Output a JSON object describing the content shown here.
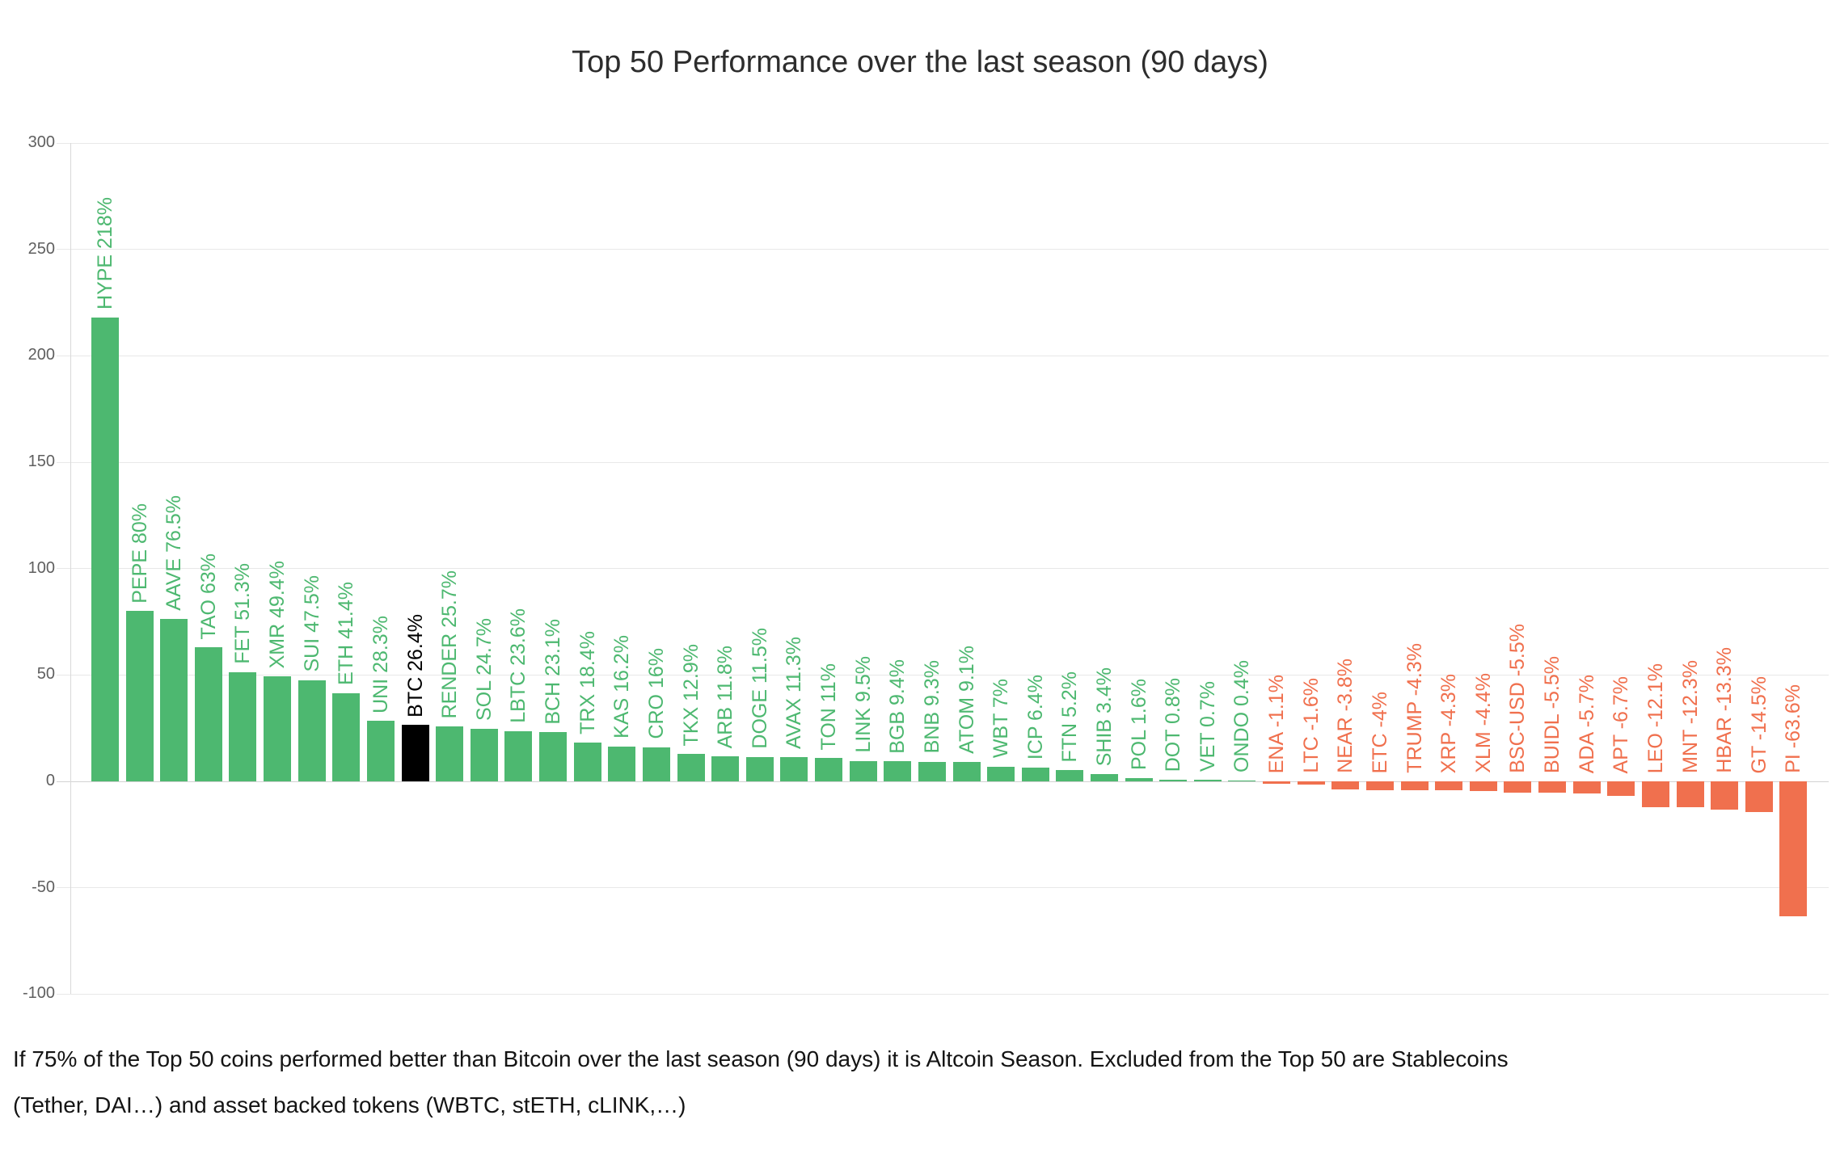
{
  "title": "Top 50 Performance over the last season (90 days)",
  "footnote": {
    "line1": "If 75% of the Top 50 coins performed better than Bitcoin over the last season (90 days) it is Altcoin Season. Excluded from the Top 50 are Stablecoins",
    "line2": "(Tether, DAI…) and asset backed tokens (WBTC, stETH, cLINK,…)"
  },
  "colors": {
    "positive": "#4db870",
    "negative": "#f0704e",
    "bitcoin": "#000000",
    "grid": "#e8e8e8",
    "zero_line": "#d2d2d2",
    "axis_text": "#5f5f5f",
    "title_text": "#2d2d2d",
    "footnote_text": "#141414"
  },
  "chart_data": {
    "type": "bar",
    "title": "Top 50 Performance over the last season (90 days)",
    "xlabel": "",
    "ylabel": "",
    "ylim": [
      -100,
      300
    ],
    "yticks": [
      300,
      250,
      200,
      150,
      100,
      50,
      0,
      -50,
      -100
    ],
    "grid": true,
    "legend": false,
    "highlight_category": "BTC",
    "categories": [
      "HYPE",
      "PEPE",
      "AAVE",
      "TAO",
      "FET",
      "XMR",
      "SUI",
      "ETH",
      "UNI",
      "BTC",
      "RENDER",
      "SOL",
      "LBTC",
      "BCH",
      "TRX",
      "KAS",
      "CRO",
      "TKX",
      "ARB",
      "DOGE",
      "AVAX",
      "TON",
      "LINK",
      "BGB",
      "BNB",
      "ATOM",
      "WBT",
      "ICP",
      "FTN",
      "SHIB",
      "POL",
      "DOT",
      "VET",
      "ONDO",
      "ENA",
      "LTC",
      "NEAR",
      "ETC",
      "TRUMP",
      "XRP",
      "XLM",
      "BSC-USD",
      "BUIDL",
      "ADA",
      "APT",
      "LEO",
      "MNT",
      "HBAR",
      "GT",
      "PI"
    ],
    "values": [
      218,
      80,
      76.5,
      63,
      51.3,
      49.4,
      47.5,
      41.4,
      28.3,
      26.4,
      25.7,
      24.7,
      23.6,
      23.1,
      18.4,
      16.2,
      16,
      12.9,
      11.8,
      11.5,
      11.3,
      11,
      9.5,
      9.4,
      9.3,
      9.1,
      7,
      6.4,
      5.2,
      3.4,
      1.6,
      0.8,
      0.7,
      0.4,
      -1.1,
      -1.6,
      -3.8,
      -4,
      -4.3,
      -4.3,
      -4.4,
      -5.5,
      -5.5,
      -5.7,
      -6.7,
      -12.1,
      -12.3,
      -13.3,
      -14.5,
      -63.6
    ],
    "value_labels": [
      "218%",
      "80%",
      "76.5%",
      "63%",
      "51.3%",
      "49.4%",
      "47.5%",
      "41.4%",
      "28.3%",
      "26.4%",
      "25.7%",
      "24.7%",
      "23.6%",
      "23.1%",
      "18.4%",
      "16.2%",
      "16%",
      "12.9%",
      "11.8%",
      "11.5%",
      "11.3%",
      "11%",
      "9.5%",
      "9.4%",
      "9.3%",
      "9.1%",
      "7%",
      "6.4%",
      "5.2%",
      "3.4%",
      "1.6%",
      "0.8%",
      "0.7%",
      "0.4%",
      "-1.1%",
      "-1.6%",
      "-3.8%",
      "-4%",
      "-4.3%",
      "-4.3%",
      "-4.4%",
      "-5.5%",
      "-5.5%",
      "-5.7%",
      "-6.7%",
      "-12.1%",
      "-12.3%",
      "-13.3%",
      "-14.5%",
      "-63.6%"
    ]
  }
}
